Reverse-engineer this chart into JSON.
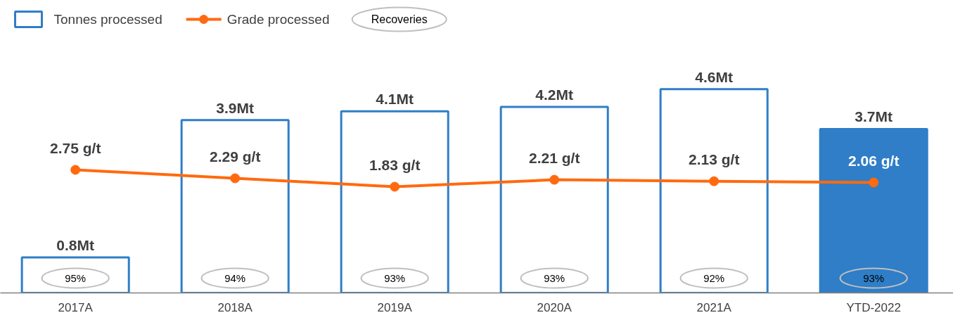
{
  "chart_data": {
    "type": "bar",
    "categories": [
      "2017A",
      "2018A",
      "2019A",
      "2020A",
      "2021A",
      "YTD-2022"
    ],
    "legend": "top left",
    "series": [
      {
        "name": "Tonnes processed",
        "color": "#2f7ec7",
        "colors": [
          "#ffffff",
          "#ffffff",
          "#ffffff",
          "#ffffff",
          "#ffffff",
          "#2f7ec7"
        ],
        "values": [
          0.8,
          3.9,
          4.1,
          4.2,
          4.6,
          3.7
        ],
        "value_labels": [
          "0.8Mt",
          "3.9Mt",
          "4.1Mt",
          "4.2Mt",
          "4.6Mt",
          "3.7Mt"
        ]
      },
      {
        "name": "Grade processed",
        "type": "line",
        "axis": "y2",
        "marker": "circle",
        "color": "#ff6a0f",
        "values": [
          2.75,
          2.29,
          1.83,
          2.21,
          2.13,
          2.06
        ],
        "value_labels": [
          "2.75 g/t",
          "2.29 g/t",
          "1.83 g/t",
          "2.21 g/t",
          "2.13 g/t",
          "2.06 g/t"
        ]
      }
    ],
    "annotations": [
      "Recoveries",
      "95%",
      "94%",
      "93%",
      "93%",
      "92%",
      "93%"
    ]
  }
}
